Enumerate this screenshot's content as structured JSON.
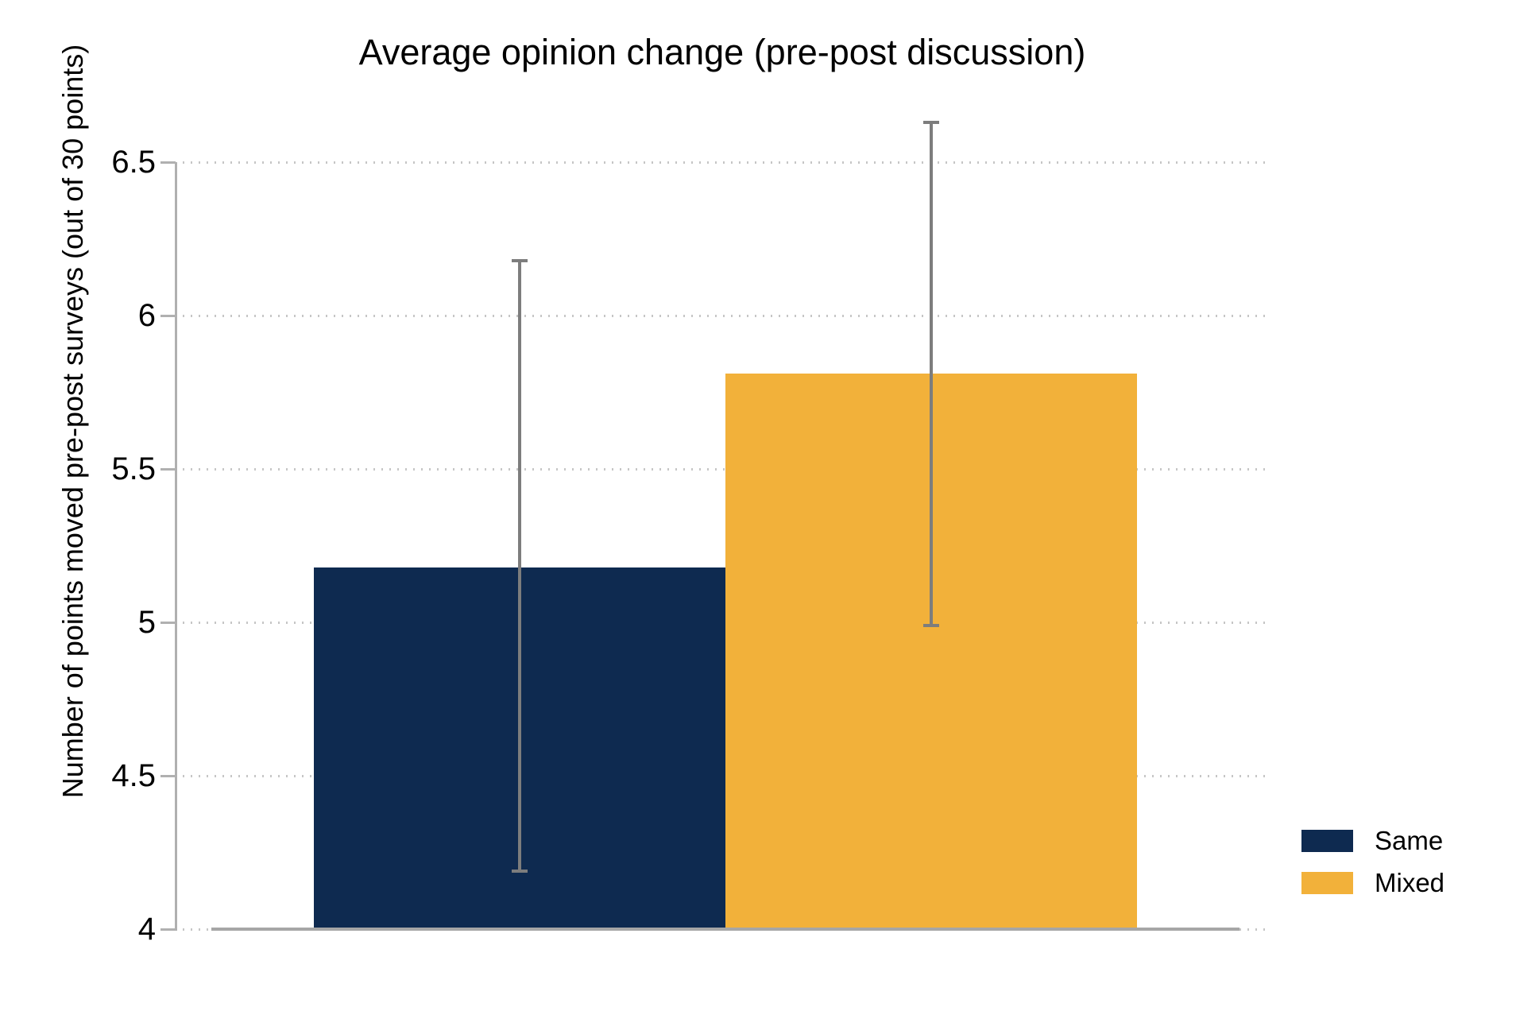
{
  "page": {
    "background": "#ffffff"
  },
  "chart_data": {
    "type": "bar",
    "title": "Average opinion change (pre-post discussion)",
    "ylabel": "Number of points moved pre-post surveys (out of 30 points)",
    "xlabel": "",
    "categories": [
      "Same",
      "Mixed"
    ],
    "values": [
      5.18,
      5.81
    ],
    "error_low": [
      4.19,
      4.99
    ],
    "error_high": [
      6.18,
      6.63
    ],
    "bar_colors": [
      "#0e2a50",
      "#f2b13a"
    ],
    "yticks": [
      4,
      4.5,
      5,
      5.5,
      6,
      6.5
    ],
    "ytick_labels": [
      "4",
      "4.5",
      "5",
      "5.5",
      "6",
      "6.5"
    ],
    "ylim": [
      4,
      6.75
    ],
    "grid": "horizontal-dotted",
    "legend": {
      "position": "right",
      "entries": [
        {
          "label": "Same",
          "color": "#0e2a50"
        },
        {
          "label": "Mixed",
          "color": "#f2b13a"
        }
      ]
    },
    "colors": {
      "axis": "#b0b0b0",
      "baseline": "#a6a6a6",
      "gridline": "#c6c6c6",
      "error_bar": "#7d7d7d",
      "text": "#000000"
    }
  }
}
